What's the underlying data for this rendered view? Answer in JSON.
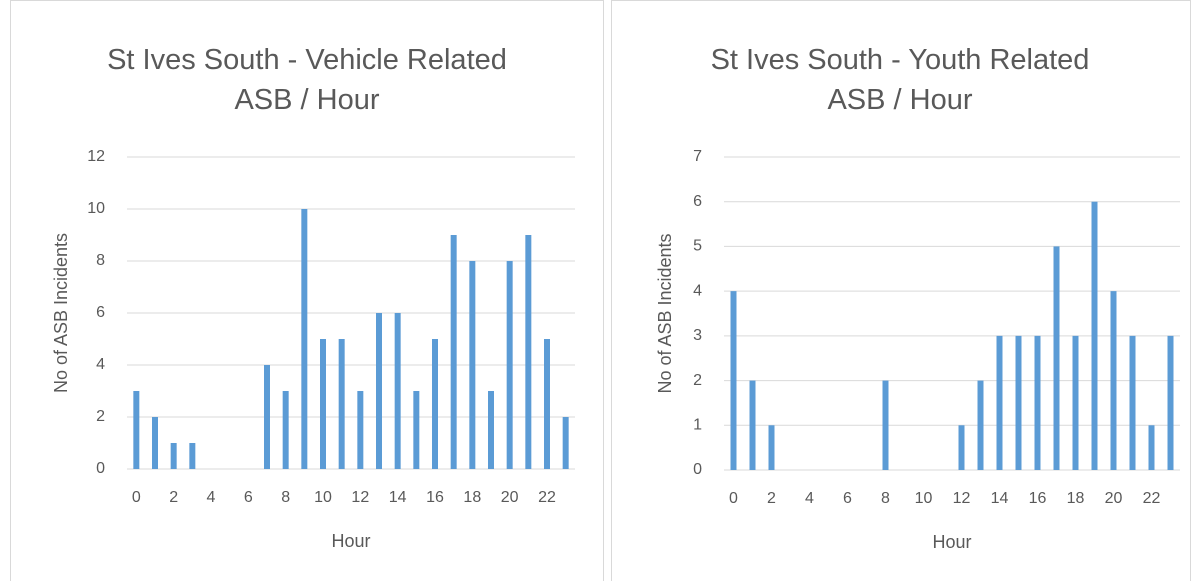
{
  "chart_data": [
    {
      "type": "bar",
      "title": "St Ives South - Vehicle Related ASB / Hour",
      "x_label": "Hour",
      "y_label": "No of ASB Incidents",
      "categories": [
        0,
        null,
        2,
        null,
        4,
        null,
        6,
        null,
        8,
        null,
        10,
        null,
        12,
        null,
        14,
        null,
        16,
        null,
        18,
        null,
        20,
        null,
        22,
        null
      ],
      "values": [
        3,
        2,
        1,
        1,
        0,
        0,
        0,
        4,
        3,
        10,
        5,
        5,
        3,
        6,
        6,
        3,
        5,
        9,
        8,
        3,
        8,
        9,
        5,
        2
      ],
      "color": "#5b9bd5",
      "ylim": [
        0,
        12
      ],
      "yticks": [
        0,
        2,
        4,
        6,
        8,
        10,
        12
      ],
      "grid": true
    },
    {
      "type": "bar",
      "title": "St Ives South - Youth Related ASB / Hour",
      "x_label": "Hour",
      "y_label": "No of ASB Incidents",
      "categories": [
        0,
        null,
        2,
        null,
        4,
        null,
        6,
        null,
        8,
        null,
        10,
        null,
        12,
        null,
        14,
        null,
        16,
        null,
        18,
        null,
        20,
        null,
        22,
        null
      ],
      "values": [
        4,
        2,
        1,
        0,
        0,
        0,
        0,
        0,
        2,
        0,
        0,
        0,
        1,
        2,
        3,
        3,
        3,
        5,
        3,
        6,
        4,
        3,
        1,
        3
      ],
      "color": "#5b9bd5",
      "ylim": [
        0,
        7
      ],
      "yticks": [
        0,
        1,
        2,
        3,
        4,
        5,
        6,
        7
      ],
      "grid": true
    }
  ]
}
